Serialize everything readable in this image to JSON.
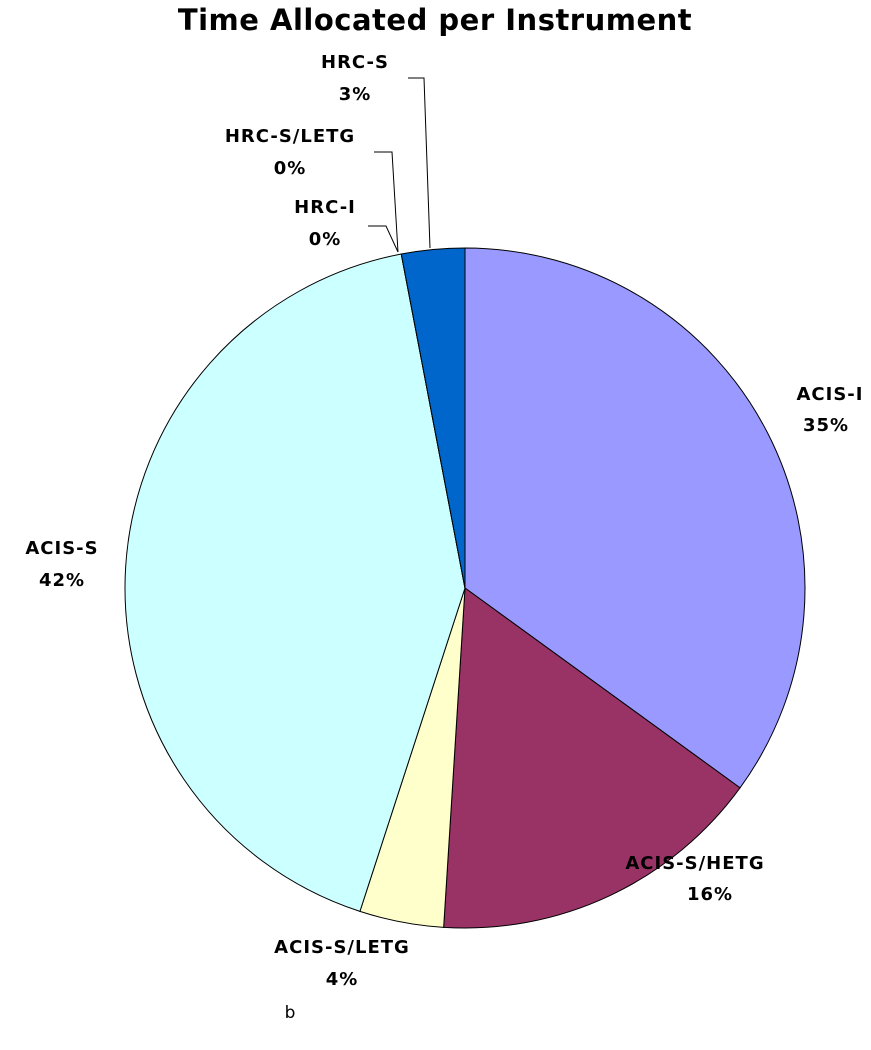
{
  "chart_data": {
    "type": "pie",
    "title": "Time Allocated per Instrument",
    "categories": [
      "ACIS-I",
      "ACIS-S/HETG",
      "ACIS-S/LETG",
      "ACIS-S",
      "HRC-I",
      "HRC-S/LETG",
      "HRC-S"
    ],
    "values": [
      35,
      16,
      4,
      42,
      0,
      0,
      3
    ],
    "value_labels": [
      "35%",
      "16%",
      "4%",
      "42%",
      "0%",
      "0%",
      "3%"
    ],
    "colors": [
      "#9999ff",
      "#993366",
      "#ffffcc",
      "#ccffff",
      "#660066",
      "#ff8080",
      "#0066cc"
    ],
    "annotations": [
      "b"
    ]
  }
}
